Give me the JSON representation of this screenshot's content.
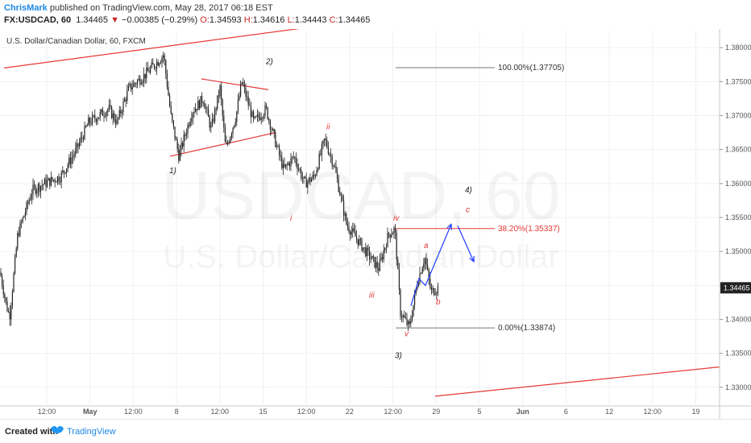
{
  "header": {
    "author": "ChrisMark",
    "published": "published on TradingView.com, May 28, 2017 06:18 EST",
    "symbol": "FX:USDCAD, 60",
    "last": "1.34465",
    "arrow": "▼",
    "change": "−0.00385 (−0.29%)",
    "ohlc_o_label": "O:",
    "ohlc_o": "1.34593",
    "ohlc_h_label": "H:",
    "ohlc_h": "1.34616",
    "ohlc_l_label": "L:",
    "ohlc_l": "1.34443",
    "ohlc_c_label": "C:",
    "ohlc_c": "1.34465"
  },
  "legend_title": "U.S. Dollar/Canadian Dollar, 60, FXCM",
  "watermark": {
    "ticker": "USDCAD, 60",
    "name": "U.S. Dollar/Canadian Dollar"
  },
  "footer": {
    "created": "Created with",
    "brand": "TradingView"
  },
  "colors": {
    "red": "#e53935",
    "blue": "#1e3cff",
    "candle": "#222222",
    "grid": "#eef0f3",
    "last_bg": "#222222"
  },
  "chart_data": {
    "type": "candlestick",
    "symbol": "FX:USDCAD",
    "interval": "60",
    "ylim": [
      1.3275,
      1.3825
    ],
    "y_ticks": [
      1.33,
      1.335,
      1.34,
      1.345,
      1.35,
      1.355,
      1.36,
      1.365,
      1.37,
      1.375,
      1.38
    ],
    "y_tick_labels": [
      "1.33000",
      "1.33500",
      "1.34000",
      "1.34500",
      "1.35000",
      "1.35500",
      "1.36000",
      "1.36500",
      "1.37000",
      "1.37500",
      "1.38000"
    ],
    "last_price_label": "1.34465",
    "last_price": 1.34465,
    "x_ticks": [
      "12:00",
      "May",
      "12:00",
      "8",
      "12:00",
      "15",
      "12:00",
      "22",
      "12:00",
      "29",
      "5",
      "Jun",
      "6",
      "12",
      "12:00",
      "19"
    ],
    "x_ticks_bold": [
      "May",
      "Jun"
    ],
    "price_path": [
      [
        0,
        1.347
      ],
      [
        8,
        1.342
      ],
      [
        12,
        1.3405
      ],
      [
        22,
        1.3525
      ],
      [
        40,
        1.359
      ],
      [
        55,
        1.36
      ],
      [
        75,
        1.361
      ],
      [
        95,
        1.365
      ],
      [
        110,
        1.369
      ],
      [
        135,
        1.371
      ],
      [
        145,
        1.369
      ],
      [
        160,
        1.374
      ],
      [
        180,
        1.376
      ],
      [
        196,
        1.378
      ],
      [
        203,
        1.379
      ],
      [
        212,
        1.37
      ],
      [
        222,
        1.364
      ],
      [
        238,
        1.3705
      ],
      [
        252,
        1.3725
      ],
      [
        262,
        1.368
      ],
      [
        273,
        1.374
      ],
      [
        280,
        1.365
      ],
      [
        293,
        1.37
      ],
      [
        300,
        1.375
      ],
      [
        315,
        1.369
      ],
      [
        330,
        1.371
      ],
      [
        342,
        1.366
      ],
      [
        352,
        1.362
      ],
      [
        365,
        1.364
      ],
      [
        378,
        1.36
      ],
      [
        390,
        1.361
      ],
      [
        403,
        1.3665
      ],
      [
        415,
        1.3625
      ],
      [
        430,
        1.354
      ],
      [
        445,
        1.3515
      ],
      [
        457,
        1.3495
      ],
      [
        470,
        1.3475
      ],
      [
        482,
        1.3525
      ],
      [
        490,
        1.3533
      ],
      [
        497,
        1.341
      ],
      [
        508,
        1.3388
      ],
      [
        518,
        1.3455
      ],
      [
        527,
        1.3492
      ],
      [
        535,
        1.344
      ],
      [
        545,
        1.3448
      ]
    ],
    "trendlines": [
      {
        "from": [
          5,
          1.377
        ],
        "to": [
          466,
          1.3843
        ],
        "color": "red"
      },
      {
        "from": [
          540,
          1.3287
        ],
        "to": [
          893,
          1.333
        ],
        "color": "red"
      },
      {
        "from": [
          250,
          1.3754
        ],
        "to": [
          333,
          1.3738
        ],
        "color": "red"
      },
      {
        "from": [
          211,
          1.364
        ],
        "to": [
          342,
          1.3675
        ],
        "color": "red"
      }
    ],
    "fibonacci": [
      {
        "label": "100.00%(1.37705)",
        "value": 1.37705,
        "x_from": 491,
        "x_to": 614,
        "color": "gray"
      },
      {
        "label": "38.20%(1.35337)",
        "value": 1.35337,
        "x_from": 491,
        "x_to": 614,
        "color": "red"
      },
      {
        "label": "0.00%(1.33874)",
        "value": 1.33874,
        "x_from": 491,
        "x_to": 614,
        "color": "gray"
      }
    ],
    "wave_labels_primary": [
      {
        "text": "1)",
        "x": 210,
        "y": 1.3615
      },
      {
        "text": "2)",
        "x": 330,
        "y": 1.3776
      },
      {
        "text": "3)",
        "x": 490,
        "y": 1.3343
      },
      {
        "text": "4)",
        "x": 577,
        "y": 1.3587
      }
    ],
    "wave_labels_minor": [
      {
        "text": "i",
        "x": 360,
        "y": 1.3545
      },
      {
        "text": "ii",
        "x": 405,
        "y": 1.368
      },
      {
        "text": "iii",
        "x": 458,
        "y": 1.3432
      },
      {
        "text": "iv",
        "x": 488,
        "y": 1.3545
      },
      {
        "text": "v",
        "x": 502,
        "y": 1.3375
      },
      {
        "text": "a",
        "x": 526,
        "y": 1.3505
      },
      {
        "text": "b",
        "x": 541,
        "y": 1.3422
      },
      {
        "text": "c",
        "x": 578,
        "y": 1.3558
      }
    ],
    "projection_arrows": [
      {
        "path": [
          [
            510,
            1.342
          ],
          [
            520,
            1.346
          ],
          [
            528,
            1.345
          ],
          [
            560,
            1.354
          ]
        ],
        "color": "blue"
      },
      {
        "path": [
          [
            568,
            1.3538
          ],
          [
            588,
            1.3485
          ]
        ],
        "color": "blue"
      }
    ]
  }
}
